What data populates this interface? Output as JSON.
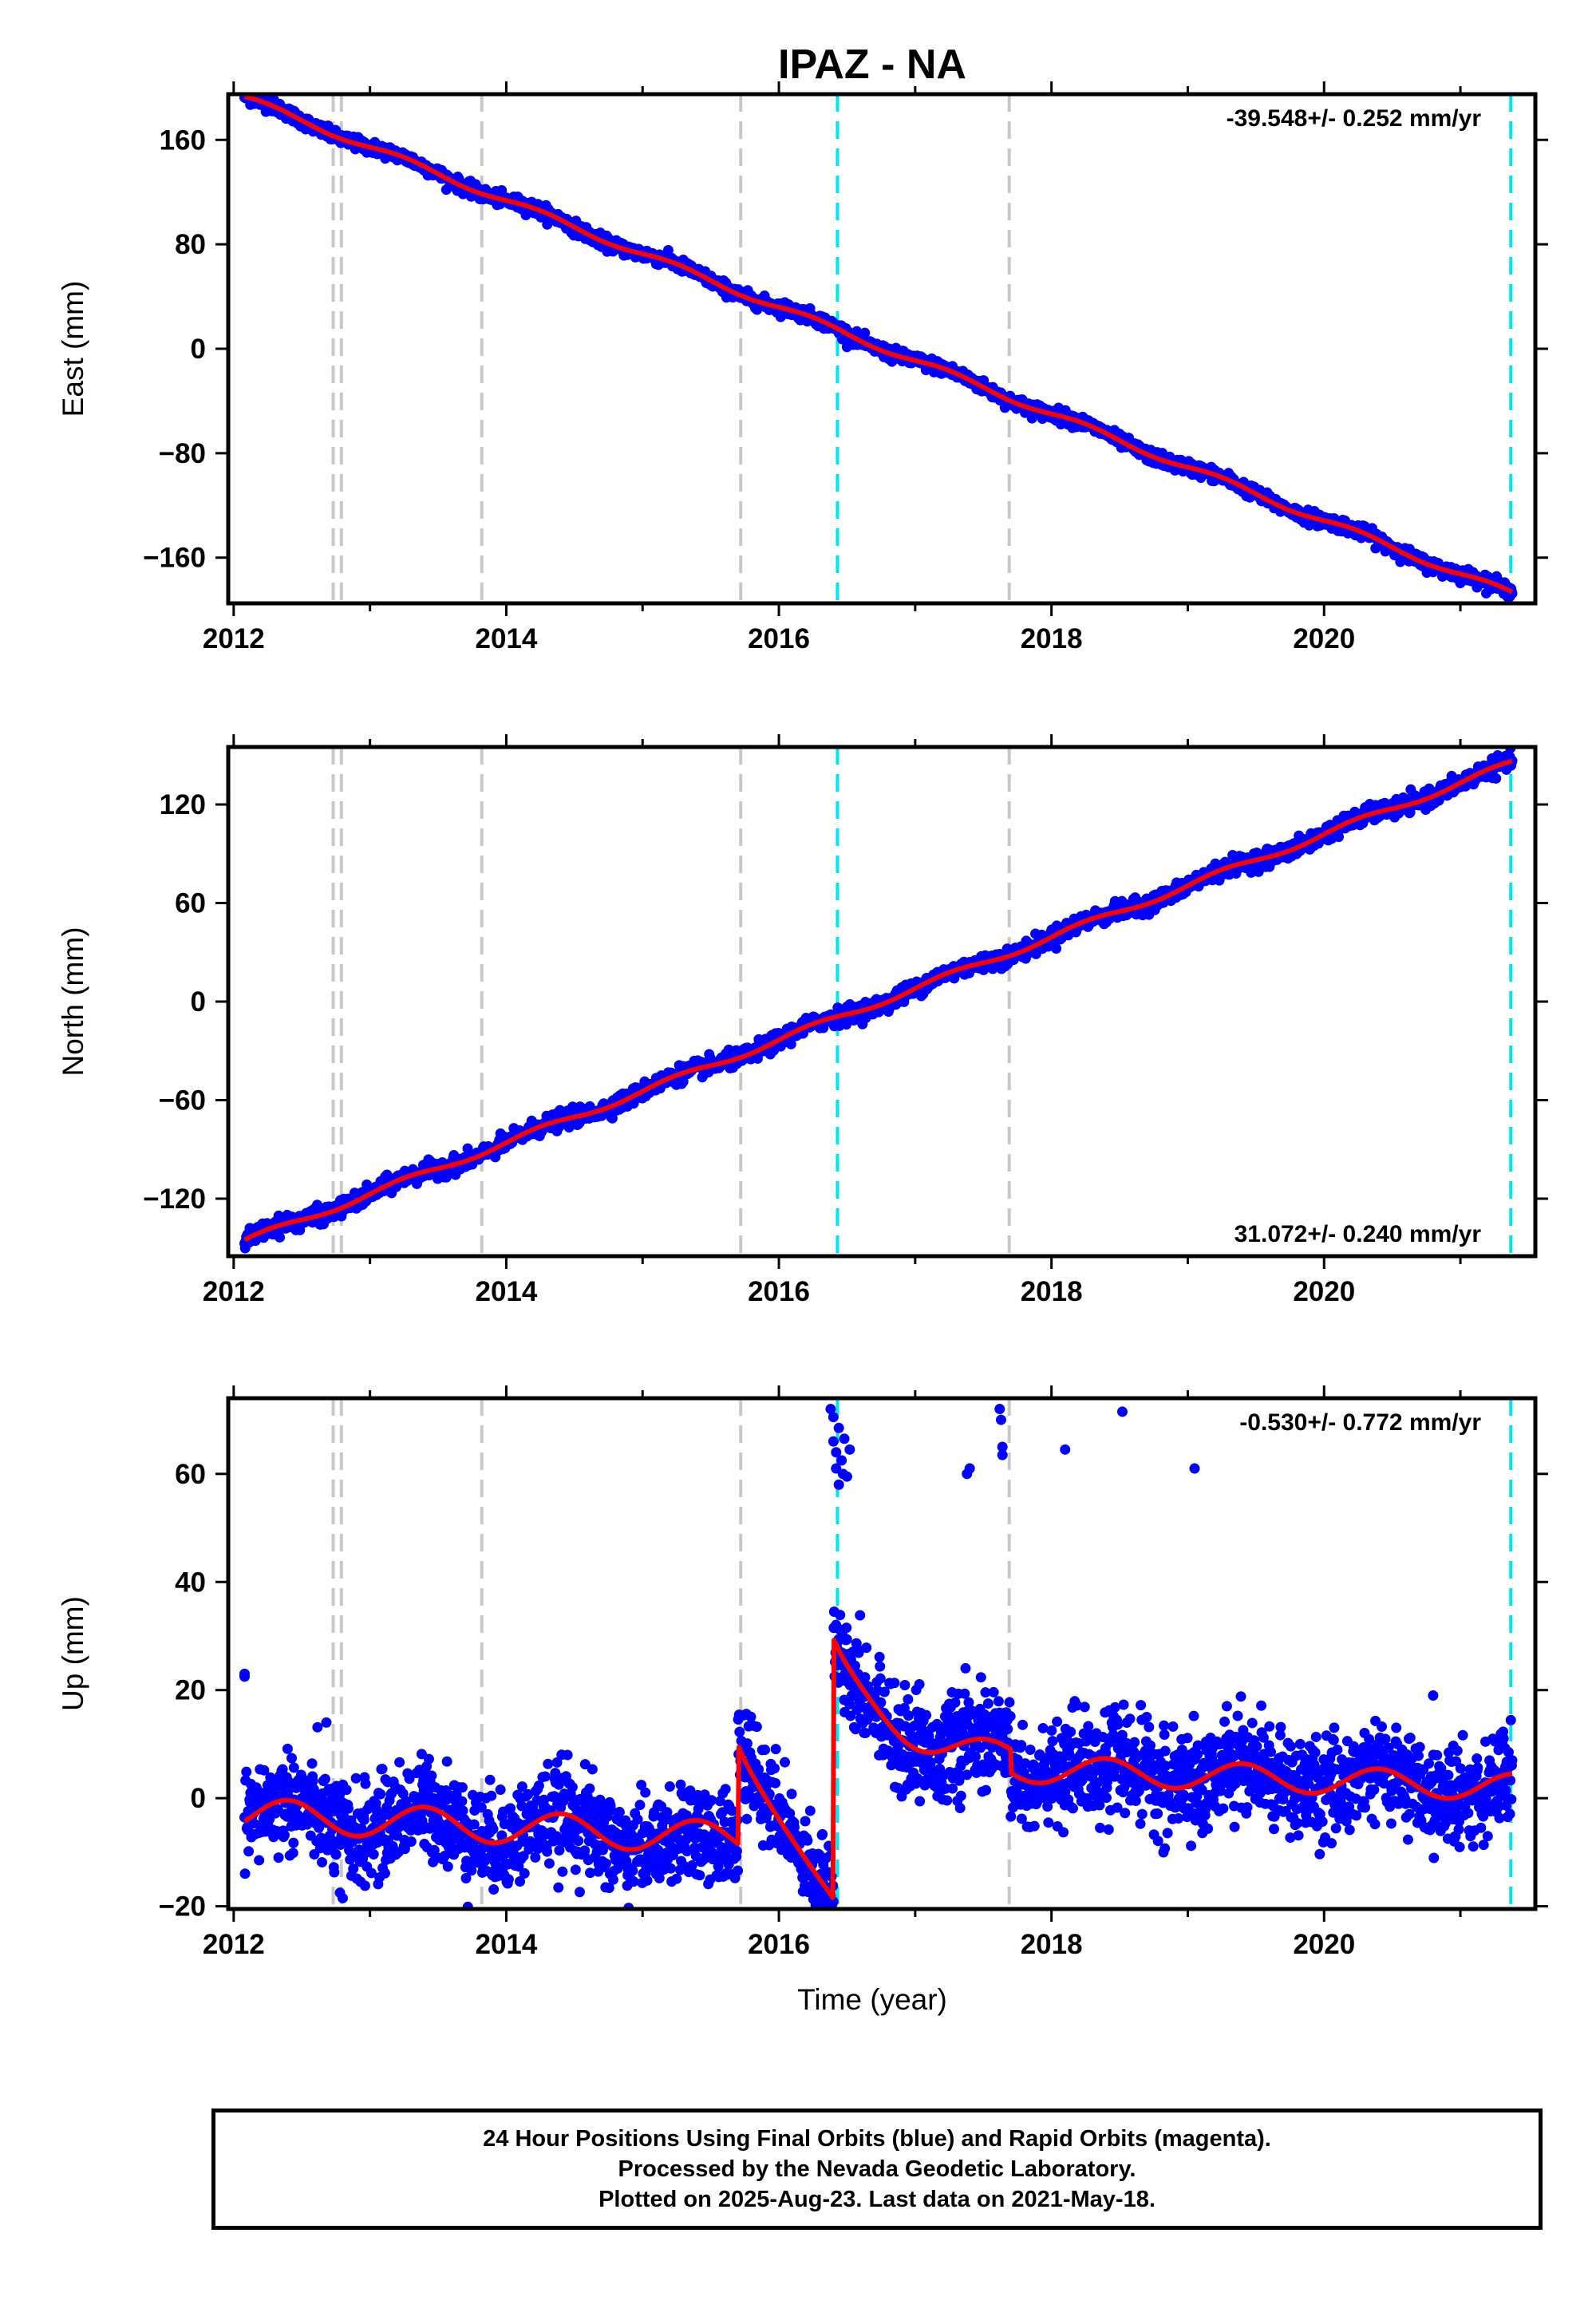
{
  "chart_data": [
    {
      "type": "scatter",
      "title": "IPAZ - NA",
      "xlabel": "",
      "ylabel": "East (mm)",
      "xlim": [
        2011.96,
        2021.55
      ],
      "ylim": [
        -195,
        195
      ],
      "yticks": [
        160,
        80,
        0,
        -80,
        -160
      ],
      "ytick_labels": [
        "160",
        "80",
        "0",
        "−80",
        "−160"
      ],
      "xticks": [
        2012,
        2014,
        2016,
        2018,
        2020
      ],
      "xtick_labels": [
        "2012",
        "2014",
        "2016",
        "2018",
        "2020"
      ],
      "rate_label": "-39.548+/- 0.252 mm/yr",
      "rate_position": "top-right",
      "model": {
        "start": [
          2012.08,
          192
        ],
        "end": [
          2021.38,
          -188
        ],
        "seasonal_amp": 2.5
      },
      "series": [
        {
          "name": "",
          "kind": "points",
          "color": "#0000ff",
          "spread": 2.5
        },
        {
          "name": "",
          "kind": "line",
          "color": "#ff0000"
        }
      ]
    },
    {
      "type": "scatter",
      "title": "",
      "xlabel": "",
      "ylabel": "North (mm)",
      "xlim": [
        2011.96,
        2021.55
      ],
      "ylim": [
        -155,
        155
      ],
      "yticks": [
        120,
        60,
        0,
        -60,
        -120
      ],
      "ytick_labels": [
        "120",
        "60",
        "0",
        "−60",
        "−120"
      ],
      "xticks": [
        2012,
        2014,
        2016,
        2018,
        2020
      ],
      "xtick_labels": [
        "2012",
        "2014",
        "2016",
        "2018",
        "2020"
      ],
      "rate_label": "31.072+/- 0.240 mm/yr",
      "rate_position": "bottom-right",
      "model": {
        "start": [
          2012.08,
          -146
        ],
        "end": [
          2021.38,
          145
        ],
        "seasonal_amp": 2.0
      },
      "series": [
        {
          "name": "",
          "kind": "points",
          "color": "#0000ff",
          "spread": 2.5
        },
        {
          "name": "",
          "kind": "line",
          "color": "#ff0000"
        }
      ]
    },
    {
      "type": "scatter",
      "title": "",
      "xlabel": "Time (year)",
      "ylabel": "Up (mm)",
      "xlim": [
        2011.96,
        2021.55
      ],
      "ylim": [
        -20.5,
        74
      ],
      "yticks": [
        60,
        40,
        20,
        0,
        -20
      ],
      "ytick_labels": [
        "60",
        "40",
        "20",
        "0",
        "−20"
      ],
      "xticks": [
        2012,
        2014,
        2016,
        2018,
        2020
      ],
      "xtick_labels": [
        "2012",
        "2014",
        "2016",
        "2018",
        "2020"
      ],
      "rate_label": "-0.530+/- 0.772 mm/yr",
      "rate_position": "top-right",
      "model_segments": [
        {
          "from": 2012.08,
          "to": 2015.7,
          "base_start": -3.0,
          "base_end": -7.5,
          "seasonal_amp": 3.0
        },
        {
          "from": 2015.7,
          "to": 2016.4,
          "jump_start": 10.0,
          "jump_end": -18.5
        },
        {
          "from": 2016.4,
          "to": 2017.7,
          "jump_start": 29.0,
          "decay_to": 8.5,
          "seasonal_amp": 2.0
        },
        {
          "from": 2017.7,
          "to": 2021.38,
          "base_start": 5.5,
          "base_end": 2.0,
          "seasonal_amp": 2.5
        }
      ],
      "outliers": [
        [
          2012.08,
          23.0
        ],
        [
          2012.08,
          22.5
        ],
        [
          2012.68,
          14.0
        ],
        [
          2012.78,
          -17.5
        ],
        [
          2012.8,
          -18.5
        ],
        [
          2016.38,
          72.0
        ],
        [
          2016.4,
          70.5
        ],
        [
          2016.4,
          66.0
        ],
        [
          2016.42,
          64.0
        ],
        [
          2016.42,
          61.0
        ],
        [
          2016.44,
          58.0
        ],
        [
          2016.44,
          68.5
        ],
        [
          2016.46,
          62.5
        ],
        [
          2016.47,
          60.0
        ],
        [
          2016.48,
          66.5
        ],
        [
          2016.5,
          59.5
        ],
        [
          2016.52,
          64.5
        ],
        [
          2017.38,
          60.0
        ],
        [
          2017.4,
          61.0
        ],
        [
          2017.62,
          72.0
        ],
        [
          2017.63,
          70.0
        ],
        [
          2017.64,
          65.0
        ],
        [
          2017.64,
          63.5
        ],
        [
          2018.1,
          64.5
        ],
        [
          2018.52,
          71.5
        ],
        [
          2019.05,
          61.0
        ],
        [
          2020.8,
          19.0
        ]
      ],
      "series": [
        {
          "name": "",
          "kind": "points",
          "color": "#0000ff",
          "spread": 4.5
        },
        {
          "name": "",
          "kind": "line",
          "color": "#ff0000"
        }
      ]
    }
  ],
  "event_lines": {
    "gray": [
      2012.73,
      2012.79,
      2013.82,
      2015.72,
      2017.69
    ],
    "cyan": [
      2016.43,
      2021.37
    ],
    "gray_color": "#c8c8c8",
    "cyan_color": "#00e5ee"
  },
  "footer": {
    "line1": "24 Hour Positions Using Final Orbits (blue) and Rapid Orbits (magenta).",
    "line2": "Processed by the Nevada Geodetic Laboratory.",
    "line3": "Plotted on 2025-Aug-23. Last data on 2021-May-18."
  }
}
